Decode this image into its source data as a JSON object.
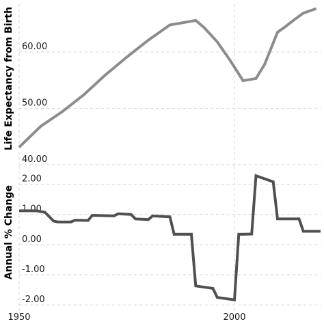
{
  "chart_data": [
    {
      "type": "line",
      "ylabel": "Life Expectancy from Birth",
      "xlim": [
        1950,
        2020
      ],
      "ylim": [
        39.5,
        68.5
      ],
      "yticks": [
        40,
        50,
        60
      ],
      "ytick_labels": [
        "40.00",
        "50.00",
        "60.00"
      ],
      "grid": true,
      "color": "#8c8c8c",
      "series": [
        {
          "x": [
            1950,
            1955,
            1960,
            1965,
            1970,
            1975,
            1980,
            1985,
            1991,
            1993,
            1996,
            1999,
            2002,
            2005,
            2007,
            2010,
            2012,
            2014,
            2016,
            2019
          ],
          "values": [
            43.1,
            46.8,
            49.4,
            52.4,
            55.9,
            59.1,
            62.1,
            64.8,
            65.6,
            64.3,
            61.8,
            58.5,
            54.9,
            55.3,
            57.8,
            63.5,
            64.6,
            65.8,
            66.9,
            67.7
          ]
        }
      ]
    },
    {
      "type": "line",
      "ylabel": "Annual % Change",
      "xlabel": "",
      "xlim": [
        1950,
        2020
      ],
      "ylim": [
        -2.2,
        2.6
      ],
      "yticks": [
        -2,
        -1,
        0,
        1,
        2
      ],
      "ytick_labels": [
        "-2.00",
        "-1.00",
        "0.00",
        "1.00",
        "2.00"
      ],
      "xticks": [
        1950,
        2000
      ],
      "xtick_labels": [
        "1950",
        "2000"
      ],
      "grid": true,
      "color": "#505050",
      "series": [
        {
          "x": [
            1950,
            1954,
            1956,
            1958,
            1959,
            1962,
            1963,
            1966,
            1967,
            1972,
            1973,
            1976,
            1977,
            1980,
            1981,
            1985,
            1986,
            1990,
            1991,
            1995,
            1996,
            2000,
            2001,
            2002,
            2004,
            2005,
            2009,
            2010,
            2011,
            2015,
            2016,
            2020
          ],
          "values": [
            1.12,
            1.12,
            1.07,
            0.78,
            0.75,
            0.75,
            0.81,
            0.8,
            0.97,
            0.95,
            1.02,
            1.0,
            0.85,
            0.83,
            0.95,
            0.92,
            0.34,
            0.34,
            -1.37,
            -1.45,
            -1.75,
            -1.83,
            0.34,
            0.34,
            0.35,
            2.28,
            2.08,
            0.85,
            0.85,
            0.85,
            0.44,
            0.44
          ]
        }
      ]
    }
  ]
}
